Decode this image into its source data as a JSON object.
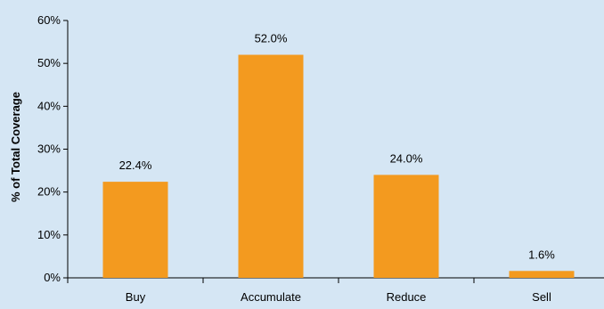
{
  "chart_data": {
    "type": "bar",
    "categories": [
      "Buy",
      "Accumulate",
      "Reduce",
      "Sell"
    ],
    "values": [
      22.4,
      52.0,
      24.0,
      1.6
    ],
    "data_labels": [
      "22.4%",
      "52.0%",
      "24.0%",
      "1.6%"
    ],
    "title": "",
    "xlabel": "",
    "ylabel": "% of Total Coverage",
    "ylim": [
      0,
      60
    ],
    "yticks": [
      0,
      10,
      20,
      30,
      40,
      50,
      60
    ],
    "ytick_labels": [
      "0%",
      "10%",
      "20%",
      "30%",
      "40%",
      "50%",
      "60%"
    ],
    "grid": false,
    "legend": "none",
    "colors": {
      "bar": "#f39a1f",
      "background": "#d5e6f4",
      "axis": "#000000"
    }
  }
}
